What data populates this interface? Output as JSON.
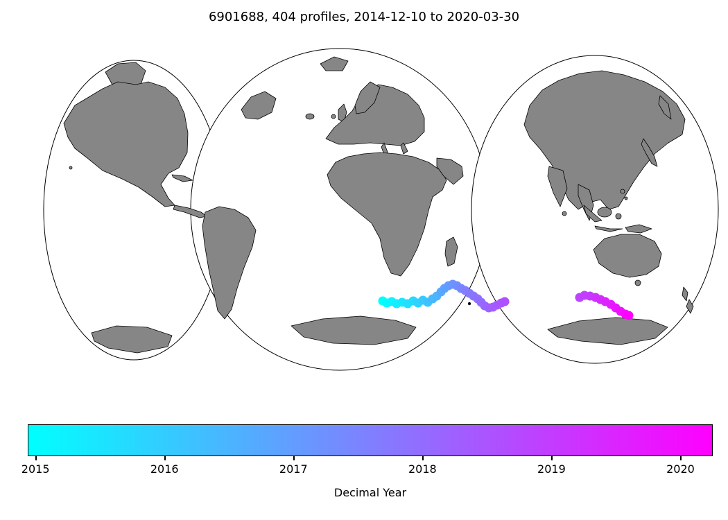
{
  "chart_data": {
    "type": "scatter",
    "subtype": "float-trajectory-on-world-map",
    "title": "6901688, 404 profiles, 2014-12-10 to 2020-03-30",
    "float_id": "6901688",
    "n_profiles": 404,
    "date_start": "2014-12-10",
    "date_end": "2020-03-30",
    "projection": "interrupted Goode homolosine world map",
    "region": "Southern Ocean, south of Africa eastward to south of Australia",
    "land_color": "#868686",
    "ocean_color": "#ffffff",
    "outline_color": "#000000",
    "colorbar": {
      "label": "Decimal Year",
      "ticks": [
        2015,
        2016,
        2017,
        2018,
        2019,
        2020
      ],
      "vmin": 2014.94,
      "vmax": 2020.25,
      "cmap_name": "cool",
      "cmap_start": "#00ffff",
      "cmap_end": "#ff00ff",
      "orientation": "horizontal"
    },
    "marker_radius_px": 6.5,
    "point_format": "[x_px, y_px, decimal_year]",
    "trajectory": [
      [
        552,
        434,
        2014.95
      ],
      [
        558,
        437,
        2015.05
      ],
      [
        565,
        435,
        2015.15
      ],
      [
        572,
        438,
        2015.3
      ],
      [
        580,
        436,
        2015.45
      ],
      [
        588,
        438,
        2015.6
      ],
      [
        596,
        434,
        2015.75
      ],
      [
        603,
        437,
        2015.9
      ],
      [
        610,
        433,
        2016.05
      ],
      [
        617,
        436,
        2016.2
      ],
      [
        624,
        431,
        2016.4
      ],
      [
        630,
        427,
        2016.55
      ],
      [
        636,
        421,
        2016.7
      ],
      [
        641,
        416,
        2016.85
      ],
      [
        647,
        412,
        2017.0
      ],
      [
        653,
        410,
        2017.15
      ],
      [
        659,
        412,
        2017.3
      ],
      [
        665,
        416,
        2017.45
      ],
      [
        671,
        419,
        2017.6
      ],
      [
        677,
        423,
        2017.7
      ],
      [
        683,
        427,
        2017.8
      ],
      [
        689,
        431,
        2017.9
      ],
      [
        694,
        436,
        2018.0
      ],
      [
        699,
        441,
        2018.1
      ],
      [
        705,
        444,
        2018.2
      ],
      [
        711,
        443,
        2018.3
      ],
      [
        717,
        440,
        2018.4
      ],
      [
        723,
        437,
        2018.5
      ],
      [
        728,
        435,
        2018.6
      ],
      [
        836,
        429,
        2018.85
      ],
      [
        843,
        426,
        2018.95
      ],
      [
        851,
        427,
        2019.05
      ],
      [
        859,
        429,
        2019.2
      ],
      [
        866,
        432,
        2019.35
      ],
      [
        873,
        435,
        2019.5
      ],
      [
        881,
        439,
        2019.65
      ],
      [
        888,
        444,
        2019.8
      ],
      [
        895,
        449,
        2019.95
      ],
      [
        902,
        453,
        2020.1
      ],
      [
        907,
        455,
        2020.25
      ]
    ],
    "deployment_marker": [
      677,
      438
    ]
  }
}
